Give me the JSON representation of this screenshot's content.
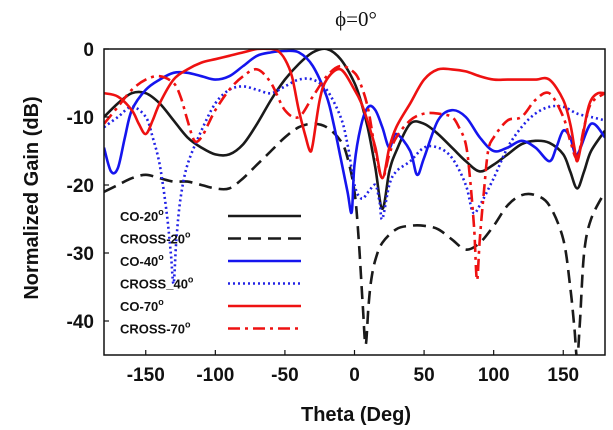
{
  "chart_data": {
    "type": "line",
    "title": "ϕ=0°",
    "xlabel": "Theta (Deg)",
    "ylabel": "Normalized Gain (dB)",
    "xlim": [
      -180,
      180
    ],
    "ylim": [
      -45,
      0
    ],
    "xticks": [
      -150,
      -100,
      -50,
      0,
      50,
      100,
      150
    ],
    "yticks": [
      0,
      -10,
      -20,
      -30,
      -40
    ],
    "grid": false,
    "legend_position": "bottom-left",
    "series": [
      {
        "name": "CO-20",
        "name_sup": "o",
        "color": "#1a1a1a",
        "dash": "solid",
        "x": [
          -180,
          -170,
          -160,
          -150,
          -140,
          -130,
          -120,
          -110,
          -100,
          -90,
          -80,
          -70,
          -60,
          -50,
          -40,
          -30,
          -20,
          -10,
          0,
          5,
          10,
          15,
          20,
          25,
          30,
          40,
          50,
          60,
          70,
          80,
          90,
          100,
          110,
          120,
          130,
          140,
          150,
          155,
          160,
          165,
          170,
          180
        ],
        "y": [
          -10,
          -8,
          -6.5,
          -6.5,
          -8,
          -10.5,
          -13,
          -14.5,
          -15.5,
          -15.5,
          -14,
          -11,
          -7.5,
          -4.5,
          -2.2,
          -0.5,
          0,
          -1.5,
          -5,
          -8,
          -12,
          -17.5,
          -23.5,
          -18,
          -15,
          -11,
          -11,
          -12.5,
          -14.5,
          -16.5,
          -18,
          -17,
          -15.5,
          -14,
          -13.5,
          -13.8,
          -15.5,
          -18,
          -20.5,
          -18,
          -15,
          -12
        ]
      },
      {
        "name": "CROSS-20",
        "name_sup": "o",
        "color": "#1a1a1a",
        "dash": "long",
        "x": [
          -180,
          -170,
          -160,
          -150,
          -140,
          -130,
          -120,
          -110,
          -100,
          -90,
          -80,
          -70,
          -60,
          -50,
          -40,
          -30,
          -20,
          -10,
          -5,
          0,
          3,
          6,
          8,
          10,
          12,
          15,
          20,
          30,
          40,
          50,
          60,
          70,
          80,
          90,
          100,
          110,
          120,
          130,
          140,
          150,
          155,
          158,
          160,
          162,
          165,
          170,
          180
        ],
        "y": [
          -21,
          -20,
          -19,
          -18.5,
          -19,
          -19.5,
          -19.5,
          -20,
          -20.5,
          -20.5,
          -19,
          -17,
          -15,
          -13,
          -11.5,
          -11,
          -11.5,
          -13.5,
          -16,
          -21,
          -28,
          -38,
          -43.5,
          -38,
          -34,
          -31,
          -28.5,
          -26.5,
          -26,
          -26,
          -26.5,
          -28,
          -29.5,
          -28.5,
          -26,
          -23,
          -21.5,
          -21.5,
          -23,
          -28,
          -35,
          -41,
          -45.5,
          -40,
          -30,
          -25,
          -21
        ]
      },
      {
        "name": "CO-40",
        "name_sup": "o",
        "color": "#1515ee",
        "dash": "solid",
        "x": [
          -180,
          -175,
          -170,
          -165,
          -160,
          -150,
          -140,
          -130,
          -120,
          -110,
          -100,
          -90,
          -80,
          -70,
          -60,
          -50,
          -40,
          -30,
          -20,
          -15,
          -10,
          -5,
          -2,
          0,
          5,
          10,
          15,
          20,
          25,
          30,
          40,
          45,
          50,
          60,
          70,
          80,
          90,
          100,
          110,
          120,
          130,
          140,
          145,
          150,
          155,
          160,
          170,
          180
        ],
        "y": [
          -14.5,
          -18,
          -17.5,
          -13,
          -9,
          -6,
          -4.5,
          -3.5,
          -3.5,
          -4,
          -4.5,
          -4,
          -2.5,
          -1,
          -0.5,
          -0.3,
          -0.5,
          -2.5,
          -7,
          -11,
          -16,
          -21,
          -24,
          -17,
          -11,
          -8.5,
          -9,
          -11.5,
          -14.5,
          -12.5,
          -15,
          -18.5,
          -16,
          -10.5,
          -9,
          -10,
          -13,
          -15,
          -14.5,
          -13.5,
          -14.5,
          -16.5,
          -14.5,
          -12,
          -13,
          -15.5,
          -11,
          -13
        ]
      },
      {
        "name": "CROSS_40",
        "name_sup": "o",
        "color": "#2222e6",
        "dash": "dotted",
        "x": [
          -180,
          -170,
          -160,
          -150,
          -145,
          -140,
          -135,
          -132,
          -130,
          -128,
          -125,
          -120,
          -110,
          -100,
          -90,
          -80,
          -70,
          -60,
          -50,
          -40,
          -30,
          -20,
          -10,
          -5,
          0,
          5,
          10,
          15,
          18,
          20,
          25,
          30,
          40,
          50,
          60,
          70,
          80,
          85,
          90,
          100,
          110,
          120,
          130,
          140,
          150,
          160,
          170,
          180
        ],
        "y": [
          -11.5,
          -10,
          -8.5,
          -10,
          -13,
          -17,
          -24,
          -30,
          -34.5,
          -28,
          -22,
          -17,
          -12,
          -8,
          -6,
          -5.5,
          -6,
          -6.5,
          -5.5,
          -4.5,
          -4.5,
          -6,
          -10,
          -14,
          -20,
          -22,
          -21,
          -20,
          -22.5,
          -25,
          -20,
          -18,
          -16.5,
          -14.5,
          -14.5,
          -16,
          -20,
          -24,
          -23,
          -19,
          -14.5,
          -11.5,
          -9.5,
          -8.5,
          -8.5,
          -9.5,
          -10,
          -10.5
        ]
      },
      {
        "name": "CO-70",
        "name_sup": "o",
        "color": "#ee1111",
        "dash": "solid",
        "x": [
          -180,
          -170,
          -160,
          -155,
          -150,
          -145,
          -140,
          -130,
          -120,
          -110,
          -100,
          -90,
          -80,
          -70,
          -60,
          -55,
          -50,
          -45,
          -40,
          -35,
          -32,
          -30,
          -25,
          -20,
          -10,
          0,
          5,
          10,
          15,
          20,
          25,
          30,
          40,
          50,
          60,
          70,
          80,
          90,
          100,
          110,
          120,
          130,
          140,
          150,
          155,
          158,
          160,
          163,
          167,
          170,
          175,
          180
        ],
        "y": [
          -6.5,
          -7,
          -9,
          -11,
          -12.5,
          -10.5,
          -8,
          -4.5,
          -3,
          -2,
          -1.5,
          -1,
          -0.5,
          0,
          0,
          -0.3,
          -1.5,
          -4,
          -9,
          -13,
          -15,
          -14,
          -7.5,
          -4.5,
          -3,
          -6,
          -8,
          -11,
          -14.5,
          -19,
          -14.5,
          -11.5,
          -8,
          -4.5,
          -3,
          -3,
          -3.3,
          -4,
          -4.5,
          -4.5,
          -4.5,
          -4.5,
          -4.5,
          -7.5,
          -11,
          -14.5,
          -16.5,
          -14,
          -9.5,
          -7.5,
          -6.5,
          -6.5
        ]
      },
      {
        "name": "CROSS-70",
        "name_sup": "o",
        "color": "#ee1111",
        "dash": "dashdot",
        "x": [
          -180,
          -170,
          -160,
          -150,
          -140,
          -130,
          -125,
          -120,
          -115,
          -110,
          -105,
          -100,
          -90,
          -80,
          -70,
          -60,
          -50,
          -40,
          -30,
          -20,
          -10,
          0,
          5,
          10,
          15,
          20,
          25,
          30,
          40,
          50,
          60,
          70,
          75,
          80,
          83,
          86,
          88,
          90,
          93,
          96,
          100,
          110,
          120,
          130,
          140,
          150,
          155,
          160,
          165,
          170,
          180
        ],
        "y": [
          -11,
          -8.5,
          -6,
          -4.5,
          -4,
          -5,
          -7,
          -10.5,
          -13.5,
          -13,
          -11,
          -9,
          -6,
          -4,
          -3,
          -5,
          -9,
          -10,
          -7,
          -4,
          -2.5,
          -3.5,
          -5.5,
          -9,
          -15,
          -19,
          -15.5,
          -13,
          -10.5,
          -9.5,
          -9.5,
          -10,
          -11.5,
          -14,
          -19,
          -26.5,
          -34,
          -28,
          -21,
          -15,
          -13,
          -10.5,
          -10,
          -7.5,
          -6.5,
          -10,
          -13.5,
          -16,
          -11.5,
          -8,
          -6.5
        ]
      }
    ]
  }
}
